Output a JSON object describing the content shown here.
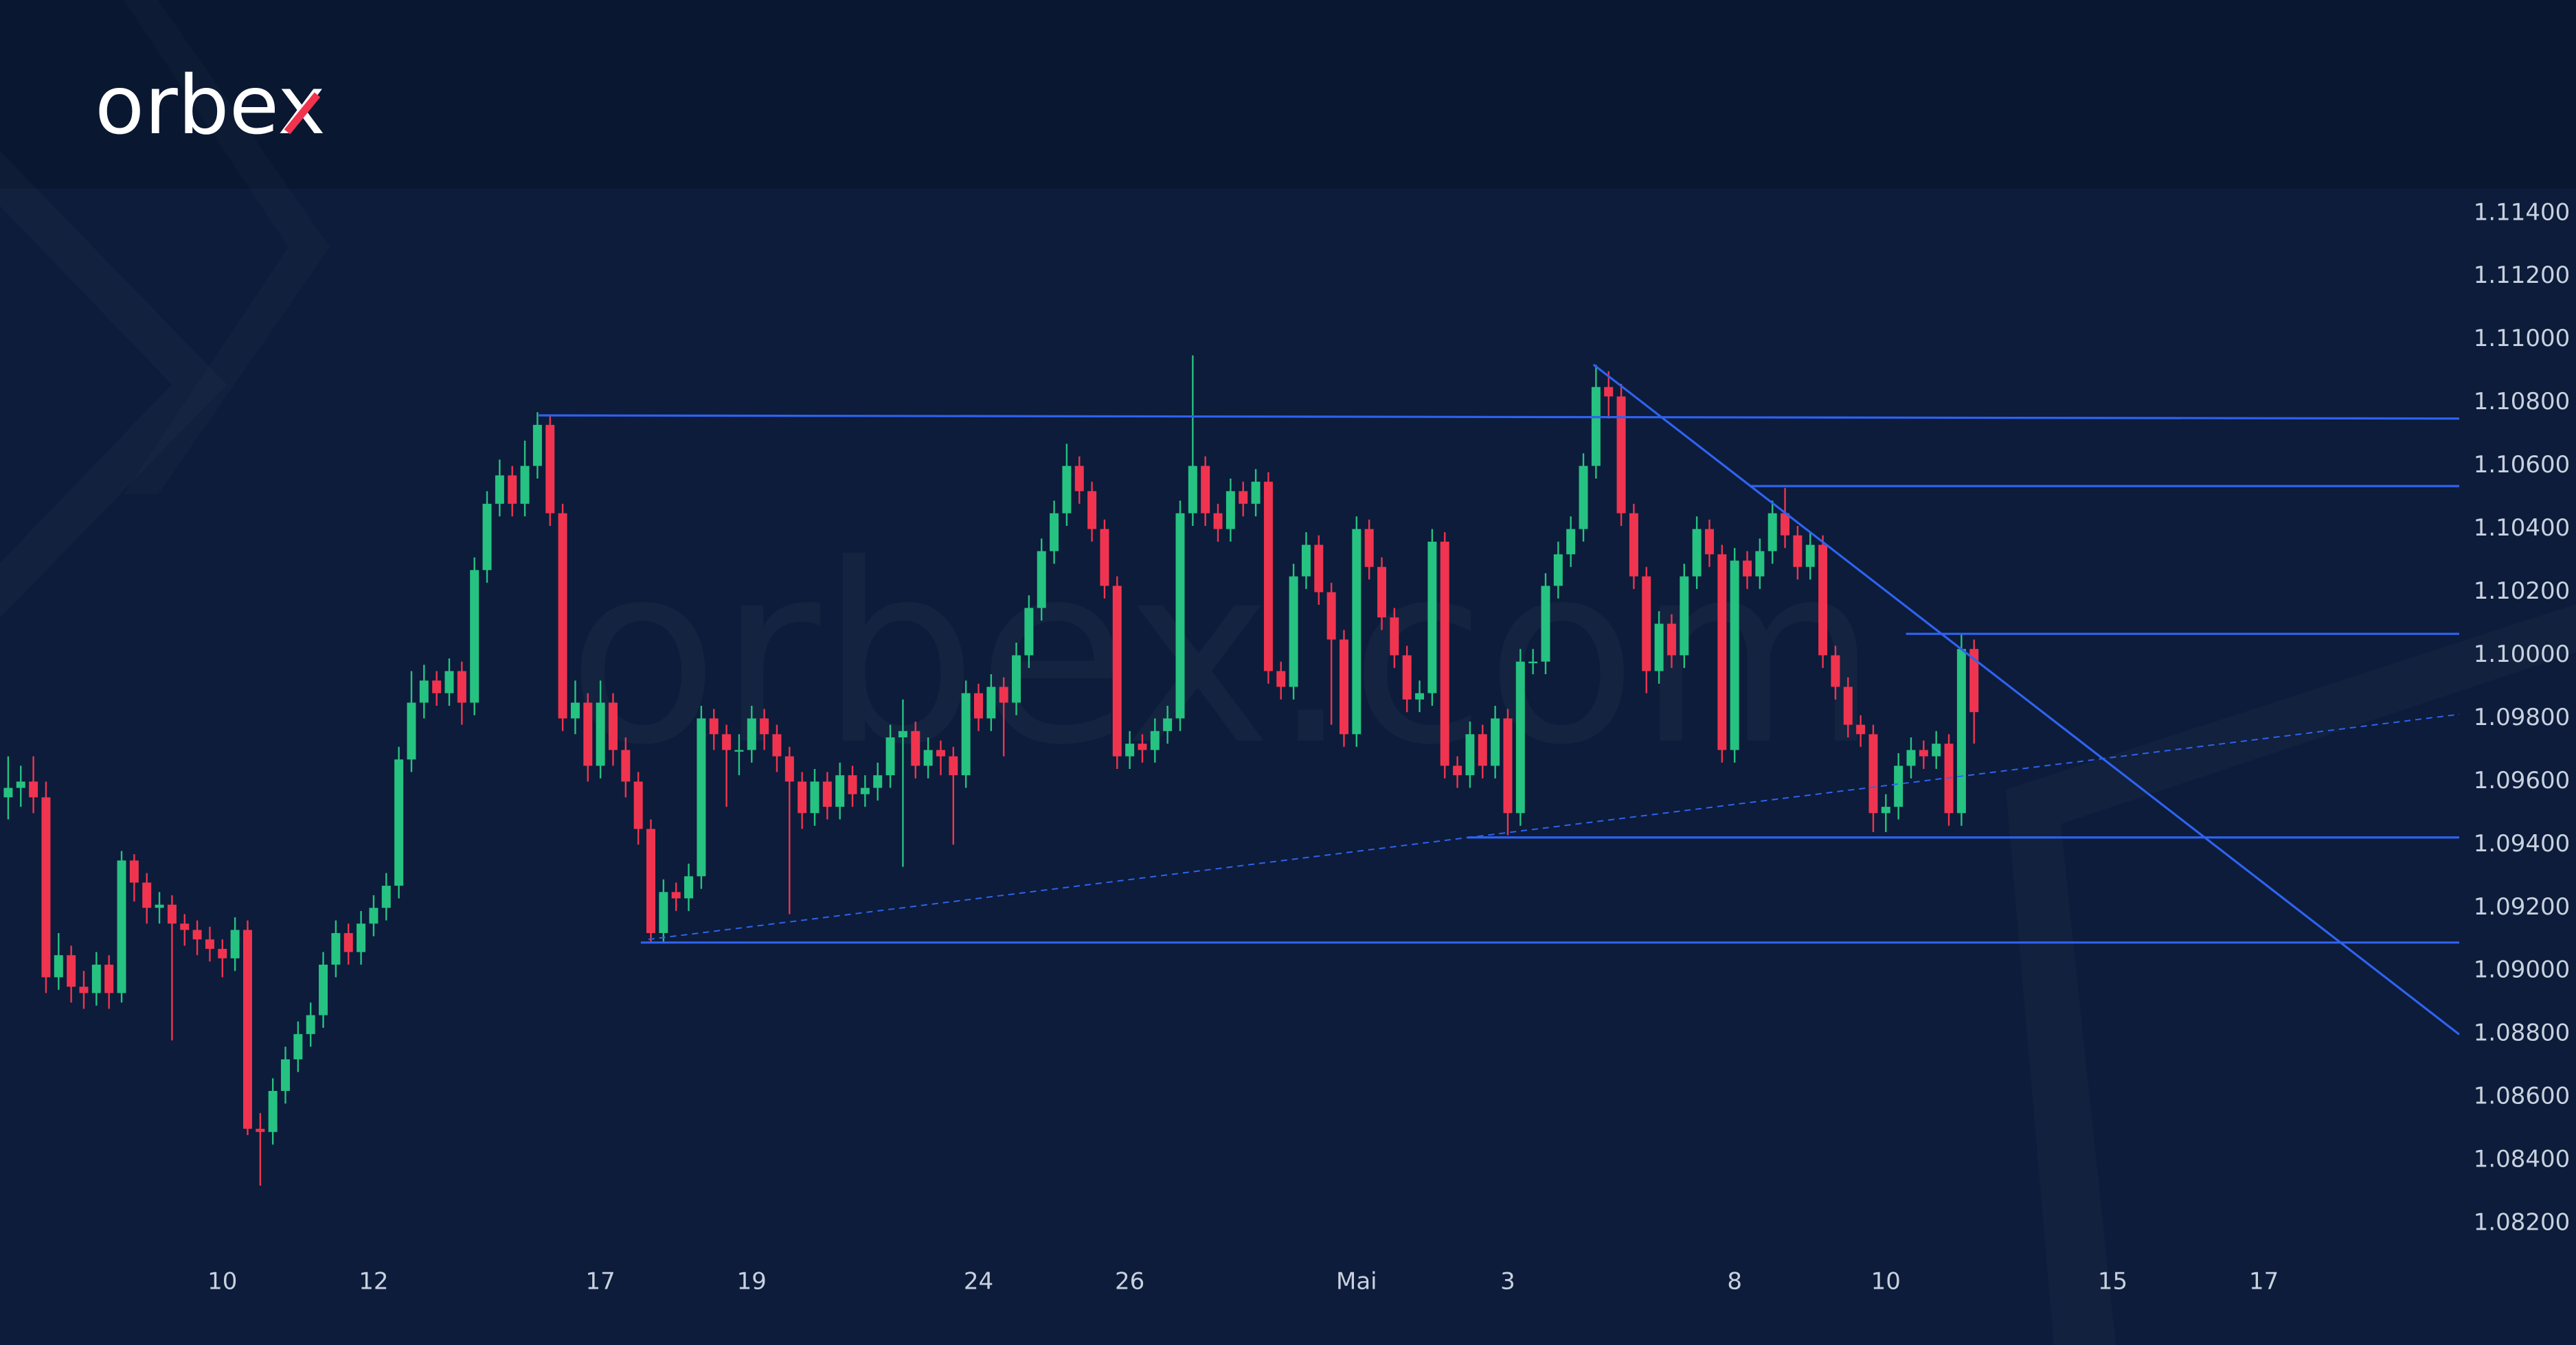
{
  "logo": "orbex",
  "watermark": "orbex.com",
  "chart_data": {
    "type": "candlestick",
    "up_color": "#26c281",
    "down_color": "#f0344f",
    "line_color": "#2f62f0",
    "xlim": [
      -0.65,
      194.5
    ],
    "ylim": [
      1.081,
      1.1148
    ],
    "grid": false,
    "xticks": [
      {
        "value": 17,
        "label": "10"
      },
      {
        "value": 29,
        "label": "12"
      },
      {
        "value": 47,
        "label": "17"
      },
      {
        "value": 59,
        "label": "19"
      },
      {
        "value": 77,
        "label": "24"
      },
      {
        "value": 89,
        "label": "26"
      },
      {
        "value": 107,
        "label": "Mai"
      },
      {
        "value": 119,
        "label": "3"
      },
      {
        "value": 137,
        "label": "8"
      },
      {
        "value": 149,
        "label": "10"
      },
      {
        "value": 167,
        "label": "15"
      },
      {
        "value": 179,
        "label": "17"
      }
    ],
    "yticks": [
      {
        "value": 1.082,
        "label": "1.08200"
      },
      {
        "value": 1.084,
        "label": "1.08400"
      },
      {
        "value": 1.086,
        "label": "1.08600"
      },
      {
        "value": 1.088,
        "label": "1.08800"
      },
      {
        "value": 1.09,
        "label": "1.09000"
      },
      {
        "value": 1.092,
        "label": "1.09200"
      },
      {
        "value": 1.094,
        "label": "1.09400"
      },
      {
        "value": 1.096,
        "label": "1.09600"
      },
      {
        "value": 1.098,
        "label": "1.09800"
      },
      {
        "value": 1.1,
        "label": "1.10000"
      },
      {
        "value": 1.102,
        "label": "1.10200"
      },
      {
        "value": 1.104,
        "label": "1.10400"
      },
      {
        "value": 1.106,
        "label": "1.10600"
      },
      {
        "value": 1.108,
        "label": "1.10800"
      },
      {
        "value": 1.11,
        "label": "1.11000"
      },
      {
        "value": 1.112,
        "label": "1.11200"
      },
      {
        "value": 1.114,
        "label": "1.11400"
      }
    ],
    "lines": [
      {
        "x": [
          42.1,
          194.5
        ],
        "y": [
          1.1076,
          1.1075
        ],
        "dashed": false
      },
      {
        "x": [
          138.2,
          194.5
        ],
        "y": [
          1.10536,
          1.10536
        ],
        "dashed": false
      },
      {
        "x": [
          150.6,
          194.5
        ],
        "y": [
          1.10068,
          1.10068
        ],
        "dashed": false
      },
      {
        "x": [
          115.8,
          194.5
        ],
        "y": [
          1.09423,
          1.09423
        ],
        "dashed": false
      },
      {
        "x": [
          50.2,
          194.5
        ],
        "y": [
          1.0909,
          1.0909
        ],
        "dashed": false
      },
      {
        "x": [
          125.8,
          194.5
        ],
        "y": [
          1.10921,
          1.08799
        ],
        "dashed": false
      },
      {
        "x": [
          50.8,
          194.5
        ],
        "y": [
          1.091,
          1.09813
        ],
        "dashed": true
      }
    ],
    "ohlc": [
      [
        1.0955,
        1.0968,
        1.0948,
        1.0958
      ],
      [
        1.0958,
        1.0965,
        1.0952,
        1.096
      ],
      [
        1.096,
        1.0968,
        1.095,
        1.0955
      ],
      [
        1.0955,
        1.096,
        1.0893,
        1.0898
      ],
      [
        1.0898,
        1.0912,
        1.0894,
        1.0905
      ],
      [
        1.0905,
        1.0908,
        1.089,
        1.0895
      ],
      [
        1.0895,
        1.09,
        1.0888,
        1.0893
      ],
      [
        1.0893,
        1.0906,
        1.0889,
        1.0902
      ],
      [
        1.0902,
        1.0905,
        1.0888,
        1.0893
      ],
      [
        1.0893,
        1.0938,
        1.089,
        1.0935
      ],
      [
        1.0935,
        1.0937,
        1.0922,
        1.0928
      ],
      [
        1.0928,
        1.0931,
        1.0915,
        1.092
      ],
      [
        1.092,
        1.0925,
        1.0915,
        1.0921
      ],
      [
        1.0921,
        1.0924,
        1.0878,
        1.0915
      ],
      [
        1.0915,
        1.0918,
        1.0908,
        1.0913
      ],
      [
        1.0913,
        1.0916,
        1.0905,
        1.091
      ],
      [
        1.091,
        1.0914,
        1.0903,
        1.0907
      ],
      [
        1.0907,
        1.091,
        1.0898,
        1.0904
      ],
      [
        1.0904,
        1.0917,
        1.09,
        1.0913
      ],
      [
        1.0913,
        1.0916,
        1.0848,
        1.085
      ],
      [
        1.085,
        1.0855,
        1.0832,
        1.0849
      ],
      [
        1.0849,
        1.0866,
        1.0845,
        1.0862
      ],
      [
        1.0862,
        1.0876,
        1.0858,
        1.0872
      ],
      [
        1.0872,
        1.0884,
        1.0868,
        1.088
      ],
      [
        1.088,
        1.089,
        1.0876,
        1.0886
      ],
      [
        1.0886,
        1.0906,
        1.0882,
        1.0902
      ],
      [
        1.0902,
        1.0916,
        1.0898,
        1.0912
      ],
      [
        1.0912,
        1.0915,
        1.0902,
        1.0906
      ],
      [
        1.0906,
        1.0919,
        1.0902,
        1.0915
      ],
      [
        1.0915,
        1.0924,
        1.0911,
        1.092
      ],
      [
        1.092,
        1.0931,
        1.0916,
        1.0927
      ],
      [
        1.0927,
        1.0971,
        1.0923,
        1.0967
      ],
      [
        1.0967,
        1.0995,
        1.0963,
        1.0985
      ],
      [
        1.0985,
        1.0997,
        1.098,
        1.0992
      ],
      [
        1.0992,
        1.0995,
        1.0984,
        1.0988
      ],
      [
        1.0988,
        1.0999,
        1.0984,
        1.0995
      ],
      [
        1.0995,
        1.0998,
        1.0978,
        1.0985
      ],
      [
        1.0985,
        1.1031,
        1.0981,
        1.1027
      ],
      [
        1.1027,
        1.1052,
        1.1023,
        1.1048
      ],
      [
        1.1048,
        1.1062,
        1.1044,
        1.1057
      ],
      [
        1.1057,
        1.106,
        1.1044,
        1.1048
      ],
      [
        1.1048,
        1.1068,
        1.1044,
        1.106
      ],
      [
        1.106,
        1.1077,
        1.1056,
        1.1073
      ],
      [
        1.1073,
        1.1076,
        1.1041,
        1.1045
      ],
      [
        1.1045,
        1.1048,
        1.0976,
        1.098
      ],
      [
        1.098,
        1.0992,
        1.0975,
        1.0985
      ],
      [
        1.0985,
        1.0988,
        1.096,
        1.0965
      ],
      [
        1.0965,
        1.0992,
        1.0961,
        1.0985
      ],
      [
        1.0985,
        1.0988,
        1.0965,
        1.097
      ],
      [
        1.097,
        1.0974,
        1.0955,
        1.096
      ],
      [
        1.096,
        1.0963,
        1.094,
        1.0945
      ],
      [
        1.0945,
        1.0948,
        1.0909,
        1.0912
      ],
      [
        1.0912,
        1.0929,
        1.0909,
        1.0925
      ],
      [
        1.0925,
        1.0928,
        1.0919,
        1.0923
      ],
      [
        1.0923,
        1.0934,
        1.0919,
        1.093
      ],
      [
        1.093,
        1.0984,
        1.0926,
        1.098
      ],
      [
        1.098,
        1.0983,
        1.097,
        1.0975
      ],
      [
        1.0975,
        1.0978,
        1.0952,
        1.097
      ],
      [
        1.097,
        1.0975,
        1.0962,
        1.097
      ],
      [
        1.097,
        1.0984,
        1.0966,
        1.098
      ],
      [
        1.098,
        1.0983,
        1.097,
        1.0975
      ],
      [
        1.0975,
        1.0978,
        1.0963,
        1.0968
      ],
      [
        1.0968,
        1.0971,
        1.0918,
        1.096
      ],
      [
        1.096,
        1.0963,
        1.0945,
        1.095
      ],
      [
        1.095,
        1.0964,
        1.0946,
        1.096
      ],
      [
        1.096,
        1.0963,
        1.0948,
        1.0952
      ],
      [
        1.0952,
        1.0966,
        1.0948,
        1.0962
      ],
      [
        1.0962,
        1.0965,
        1.0952,
        1.0956
      ],
      [
        1.0956,
        1.0962,
        1.0952,
        1.0958
      ],
      [
        1.0958,
        1.0966,
        1.0954,
        1.0962
      ],
      [
        1.0962,
        1.0978,
        1.0958,
        1.0974
      ],
      [
        1.0974,
        1.0986,
        1.0933,
        1.0976
      ],
      [
        1.0976,
        1.0979,
        1.0961,
        1.0965
      ],
      [
        1.0965,
        1.0974,
        1.0961,
        1.097
      ],
      [
        1.097,
        1.0973,
        1.0962,
        1.0968
      ],
      [
        1.0968,
        1.0971,
        1.094,
        1.0962
      ],
      [
        1.0962,
        1.0992,
        1.0958,
        1.0988
      ],
      [
        1.0988,
        1.0991,
        1.0976,
        1.098
      ],
      [
        1.098,
        1.0994,
        1.0976,
        1.099
      ],
      [
        1.099,
        1.0993,
        1.0968,
        1.0985
      ],
      [
        1.0985,
        1.1004,
        1.0981,
        1.1
      ],
      [
        1.1,
        1.1019,
        1.0996,
        1.1015
      ],
      [
        1.1015,
        1.1037,
        1.1011,
        1.1033
      ],
      [
        1.1033,
        1.1049,
        1.1029,
        1.1045
      ],
      [
        1.1045,
        1.1067,
        1.1041,
        1.106
      ],
      [
        1.106,
        1.1063,
        1.1048,
        1.1052
      ],
      [
        1.1052,
        1.1055,
        1.1036,
        1.104
      ],
      [
        1.104,
        1.1043,
        1.1018,
        1.1022
      ],
      [
        1.1022,
        1.1025,
        1.0964,
        1.0968
      ],
      [
        1.0968,
        1.0976,
        1.0964,
        1.0972
      ],
      [
        1.0972,
        1.0975,
        1.0966,
        1.097
      ],
      [
        1.097,
        1.098,
        1.0966,
        1.0976
      ],
      [
        1.0976,
        1.0984,
        1.0972,
        1.098
      ],
      [
        1.098,
        1.1049,
        1.0976,
        1.1045
      ],
      [
        1.1045,
        1.1095,
        1.1041,
        1.106
      ],
      [
        1.106,
        1.1063,
        1.1041,
        1.1045
      ],
      [
        1.1045,
        1.1048,
        1.1036,
        1.104
      ],
      [
        1.104,
        1.1056,
        1.1036,
        1.1052
      ],
      [
        1.1052,
        1.1055,
        1.1044,
        1.1048
      ],
      [
        1.1048,
        1.1059,
        1.1044,
        1.1055
      ],
      [
        1.1055,
        1.1058,
        1.0991,
        1.0995
      ],
      [
        1.0995,
        1.0998,
        1.0986,
        1.099
      ],
      [
        1.099,
        1.1029,
        1.0986,
        1.1025
      ],
      [
        1.1025,
        1.1039,
        1.1021,
        1.1035
      ],
      [
        1.1035,
        1.1038,
        1.1016,
        1.102
      ],
      [
        1.102,
        1.1023,
        1.0978,
        1.1005
      ],
      [
        1.1005,
        1.1008,
        1.0971,
        1.0975
      ],
      [
        1.0975,
        1.1044,
        1.0971,
        1.104
      ],
      [
        1.104,
        1.1043,
        1.1024,
        1.1028
      ],
      [
        1.1028,
        1.1031,
        1.1008,
        1.1012
      ],
      [
        1.1012,
        1.1015,
        1.0996,
        1.1
      ],
      [
        1.1,
        1.1003,
        1.0982,
        1.0986
      ],
      [
        1.0986,
        1.0992,
        1.0982,
        1.0988
      ],
      [
        1.0988,
        1.104,
        1.0984,
        1.1036
      ],
      [
        1.1036,
        1.1039,
        1.0961,
        1.0965
      ],
      [
        1.0965,
        1.0968,
        1.0958,
        1.0962
      ],
      [
        1.0962,
        1.0979,
        1.0958,
        1.0975
      ],
      [
        1.0975,
        1.0978,
        1.0961,
        1.0965
      ],
      [
        1.0965,
        1.0984,
        1.0961,
        1.098
      ],
      [
        1.098,
        1.0983,
        1.0943,
        1.095
      ],
      [
        1.095,
        1.1002,
        1.0946,
        1.0998
      ],
      [
        1.0998,
        1.1002,
        1.0994,
        1.0998
      ],
      [
        1.0998,
        1.1026,
        1.0994,
        1.1022
      ],
      [
        1.1022,
        1.1036,
        1.1018,
        1.1032
      ],
      [
        1.1032,
        1.1044,
        1.1028,
        1.104
      ],
      [
        1.104,
        1.1064,
        1.1036,
        1.106
      ],
      [
        1.106,
        1.1092,
        1.1056,
        1.1085
      ],
      [
        1.1085,
        1.109,
        1.1075,
        1.1082
      ],
      [
        1.1082,
        1.1086,
        1.1041,
        1.1045
      ],
      [
        1.1045,
        1.1048,
        1.1021,
        1.1025
      ],
      [
        1.1025,
        1.1028,
        1.0988,
        1.0995
      ],
      [
        1.0995,
        1.1014,
        1.0991,
        1.101
      ],
      [
        1.101,
        1.1013,
        1.0996,
        1.1
      ],
      [
        1.1,
        1.1029,
        1.0996,
        1.1025
      ],
      [
        1.1025,
        1.1044,
        1.1021,
        1.104
      ],
      [
        1.104,
        1.1043,
        1.1028,
        1.1032
      ],
      [
        1.1032,
        1.1035,
        1.0966,
        1.097
      ],
      [
        1.097,
        1.1034,
        1.0966,
        1.103
      ],
      [
        1.103,
        1.1033,
        1.1021,
        1.1025
      ],
      [
        1.1025,
        1.1037,
        1.1021,
        1.1033
      ],
      [
        1.1033,
        1.1049,
        1.1029,
        1.1045
      ],
      [
        1.1045,
        1.1053,
        1.1034,
        1.1038
      ],
      [
        1.1038,
        1.1041,
        1.1024,
        1.1028
      ],
      [
        1.1028,
        1.1039,
        1.1024,
        1.1035
      ],
      [
        1.1035,
        1.1038,
        1.0996,
        1.1
      ],
      [
        1.1,
        1.1003,
        1.0986,
        1.099
      ],
      [
        1.099,
        1.0993,
        1.0974,
        1.0978
      ],
      [
        1.0978,
        1.0981,
        1.0971,
        1.0975
      ],
      [
        1.0975,
        1.0978,
        1.0944,
        1.095
      ],
      [
        1.095,
        1.0956,
        1.0944,
        1.0952
      ],
      [
        1.0952,
        1.0969,
        1.0948,
        1.0965
      ],
      [
        1.0965,
        1.0974,
        1.0961,
        1.097
      ],
      [
        1.097,
        1.0973,
        1.0964,
        1.0968
      ],
      [
        1.0968,
        1.0976,
        1.0964,
        1.0972
      ],
      [
        1.0972,
        1.0975,
        1.0946,
        1.095
      ],
      [
        1.095,
        1.1007,
        1.0946,
        1.1002
      ],
      [
        1.1002,
        1.1005,
        1.0972,
        1.0982
      ]
    ]
  }
}
